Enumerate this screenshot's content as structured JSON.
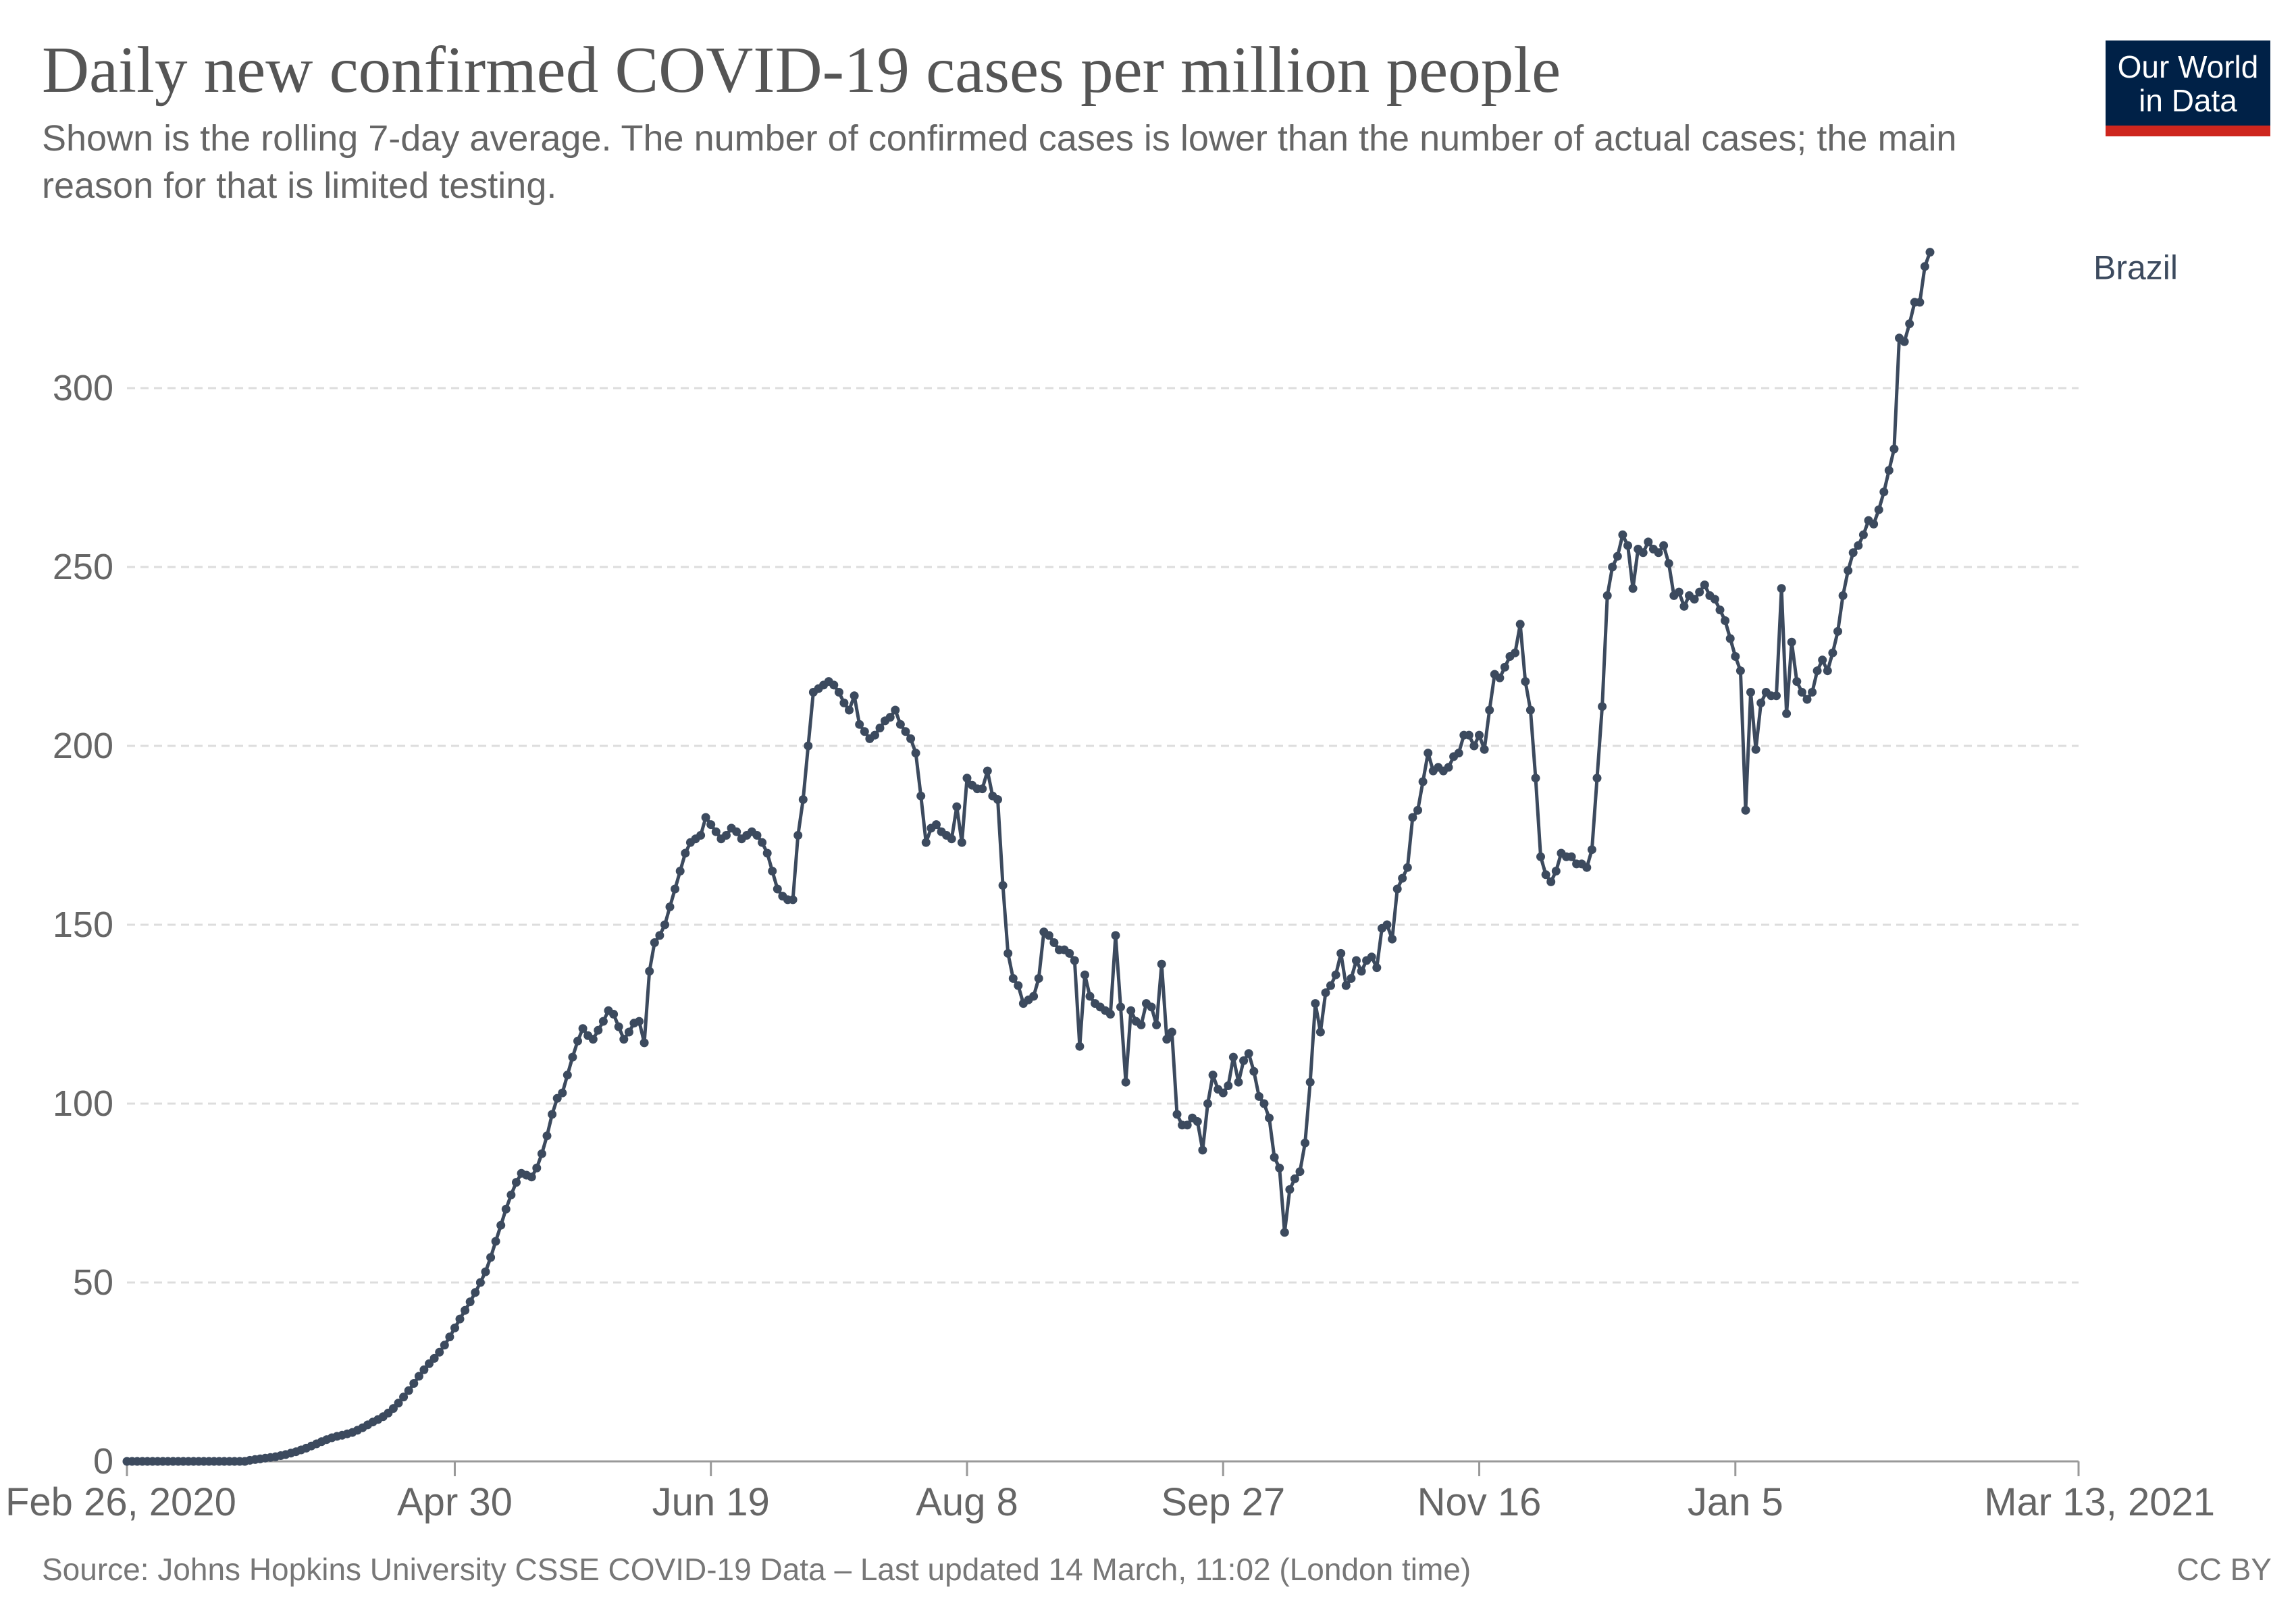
{
  "header": {
    "title": "Daily new confirmed COVID-19 cases per million people",
    "subtitle": "Shown is the rolling 7-day average. The number of confirmed cases is lower than the number of actual cases; the main reason for that is limited testing."
  },
  "logo": {
    "line1": "Our World",
    "line2": "in Data"
  },
  "footer": {
    "source": "Source: Johns Hopkins University CSSE COVID-19 Data – Last updated 14 March, 11:02 (London time)",
    "license": "CC BY"
  },
  "colors": {
    "series": "#3c4a5e",
    "grid": "#dddddd",
    "axis_text": "#666666",
    "logo_bg": "#002147",
    "logo_accent": "#ce261e"
  },
  "chart_data": {
    "type": "line",
    "title": "Daily new confirmed COVID-19 cases per million people",
    "xlabel": "",
    "ylabel": "",
    "ylim": [
      0,
      340
    ],
    "yticks": [
      0,
      50,
      100,
      150,
      200,
      250,
      300
    ],
    "x_start": "2020-02-26",
    "x_end": "2021-03-13",
    "total_days": 381,
    "xticks": [
      {
        "day": 0,
        "label": "Feb 26, 2020"
      },
      {
        "day": 64,
        "label": "Apr 30"
      },
      {
        "day": 114,
        "label": "Jun 19"
      },
      {
        "day": 164,
        "label": "Aug 8"
      },
      {
        "day": 214,
        "label": "Sep 27"
      },
      {
        "day": 264,
        "label": "Nov 16"
      },
      {
        "day": 314,
        "label": "Jan 5"
      },
      {
        "day": 381,
        "label": "Mar 13, 2021"
      }
    ],
    "grid": true,
    "series": [
      {
        "name": "Brazil",
        "label": "Brazil",
        "start_date": "2020-02-26",
        "values": [
          0,
          0,
          0,
          0,
          0,
          0,
          0,
          0,
          0,
          0,
          0,
          0,
          0,
          0,
          0,
          0,
          0,
          0,
          0,
          0,
          0,
          0,
          0,
          0,
          0.3,
          0.5,
          0.7,
          0.9,
          1.1,
          1.3,
          1.6,
          1.9,
          2.3,
          2.7,
          3.2,
          3.7,
          4.3,
          4.9,
          5.5,
          6.1,
          6.6,
          7.0,
          7.3,
          7.7,
          8.1,
          8.7,
          9.4,
          10.2,
          11.0,
          11.7,
          12.5,
          13.5,
          14.8,
          16.3,
          18.0,
          19.8,
          21.8,
          23.8,
          25.6,
          27.3,
          28.8,
          30.5,
          32.5,
          34.8,
          37.3,
          39.8,
          42.2,
          44.6,
          47.2,
          50.0,
          53.0,
          57.0,
          61.5,
          66.0,
          70.5,
          74.5,
          78.0,
          80.5,
          80.0,
          79.5,
          82.0,
          86.0,
          91.0,
          97.0,
          101.5,
          103.0,
          108.0,
          113.0,
          117.5,
          121.0,
          119.0,
          118.0,
          120.5,
          123.0,
          126.0,
          125.0,
          121.5,
          118.0,
          120.0,
          122.5,
          123.0,
          117.0,
          137.0,
          145.0,
          147.0,
          150.0,
          155.0,
          160.0,
          165.0,
          170.0,
          173.0,
          174.0,
          175.0,
          180.0,
          178.0,
          176.0,
          174.0,
          175.0,
          177.0,
          176.0,
          174.0,
          175.0,
          176.0,
          175.0,
          173.0,
          170.0,
          165.0,
          160.0,
          158.0,
          157.0,
          157.0,
          175.0,
          185.0,
          200.0,
          215.0,
          216.0,
          217.0,
          218.0,
          217.0,
          215.0,
          212.0,
          210.0,
          214.0,
          206.0,
          204.0,
          202.0,
          203.0,
          205.0,
          207.0,
          208.0,
          210.0,
          206.0,
          204.0,
          202.0,
          198.0,
          186.0,
          173.0,
          177.0,
          178.0,
          176.0,
          175.0,
          174.0,
          183.0,
          173.0,
          191.0,
          189.0,
          188.0,
          188.0,
          193.0,
          186.0,
          185.0,
          161.0,
          142.0,
          135.0,
          133.0,
          128.0,
          129.0,
          130.0,
          135.0,
          148.0,
          147.0,
          145.0,
          143.0,
          143.0,
          142.0,
          140.0,
          116.0,
          136.0,
          130.0,
          128.0,
          127.0,
          126.0,
          125.0,
          147.0,
          127.0,
          106.0,
          126.0,
          123.0,
          122.0,
          128.0,
          127.0,
          122.0,
          139.0,
          118.0,
          120.0,
          97.0,
          94.0,
          94.0,
          96.0,
          95.0,
          87.0,
          100.0,
          108.0,
          104.0,
          103.0,
          105.0,
          113.0,
          106.0,
          112.0,
          114.0,
          109.0,
          102.0,
          100.0,
          96.0,
          85.0,
          82.0,
          64.0,
          76.0,
          79.0,
          81.0,
          89.0,
          106.0,
          128.0,
          120.0,
          131.0,
          133.0,
          136.0,
          142.0,
          133.0,
          135.0,
          140.0,
          137.0,
          140.0,
          141.0,
          138.0,
          149.0,
          150.0,
          146.0,
          160.0,
          163.0,
          166.0,
          180.0,
          182.0,
          190.0,
          198.0,
          193.0,
          194.0,
          193.0,
          194.0,
          197.0,
          198.0,
          203.0,
          203.0,
          200.0,
          203.0,
          199.0,
          210.0,
          220.0,
          219.0,
          222.0,
          225.0,
          226.0,
          234.0,
          218.0,
          210.0,
          191.0,
          169.0,
          164.0,
          162.0,
          165.0,
          170.0,
          169.0,
          169.0,
          167.0,
          167.0,
          166.0,
          171.0,
          191.0,
          211.0,
          242.0,
          250.0,
          253.0,
          259.0,
          256.0,
          244.0,
          255.0,
          254.0,
          257.0,
          255.0,
          254.0,
          256.0,
          251.0,
          242.0,
          243.0,
          239.0,
          242.0,
          241.0,
          243.0,
          245.0,
          242.0,
          241.0,
          238.0,
          235.0,
          230.0,
          225.0,
          221.0,
          182.0,
          215.0,
          199.0,
          212.0,
          215.0,
          214.0,
          214.0,
          244.0,
          209.0,
          229.0,
          218.0,
          215.0,
          213.0,
          215.0,
          221.0,
          224.0,
          221.0,
          226.0,
          232.0,
          242.0,
          249.0,
          254.0,
          256.0,
          259.0,
          263.0,
          262.0,
          266.0,
          271.0,
          277.0,
          283.0,
          314.0,
          313.0,
          318.0,
          324.0,
          324.0,
          334.0,
          338.0
        ]
      }
    ]
  }
}
